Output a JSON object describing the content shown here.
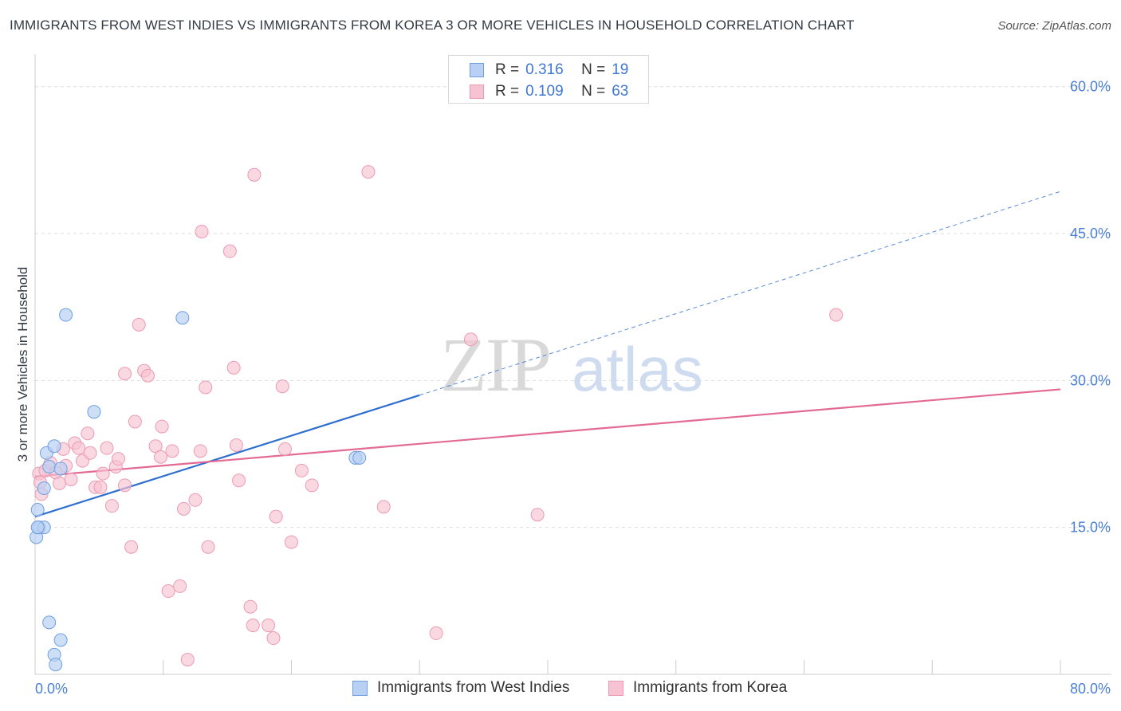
{
  "title": "IMMIGRANTS FROM WEST INDIES VS IMMIGRANTS FROM KOREA 3 OR MORE VEHICLES IN HOUSEHOLD CORRELATION CHART",
  "source": "Source: ZipAtlas.com",
  "watermark": {
    "zip": "ZIP",
    "atlas": "atlas"
  },
  "legend": {
    "rows": [
      {
        "r_label": "R =",
        "r_value": "0.316",
        "n_label": "N =",
        "n_value": "19"
      },
      {
        "r_label": "R =",
        "r_value": "0.109",
        "n_label": "N =",
        "n_value": "63"
      }
    ]
  },
  "bottom_legend": {
    "items": [
      "Immigrants from West Indies",
      "Immigrants from Korea"
    ]
  },
  "colors": {
    "blue_fill": "#b8d0f3",
    "blue_stroke": "#6f9fe0",
    "blue_line": "#2f6fd0",
    "pink_fill": "#f7c3d3",
    "pink_stroke": "#ec9ab4",
    "pink_line": "#e46a96",
    "grid": "#dddddd",
    "axis_text": "#4a7fd4"
  },
  "chart_data": {
    "type": "scatter",
    "title": "IMMIGRANTS FROM WEST INDIES VS IMMIGRANTS FROM KOREA 3 OR MORE VEHICLES IN HOUSEHOLD CORRELATION CHART",
    "xlabel": "",
    "ylabel": "3 or more Vehicles in Household",
    "xlim": [
      0,
      80
    ],
    "ylim": [
      0,
      62.5
    ],
    "x_tick_labels": [
      {
        "value": 0,
        "label": "0.0%"
      },
      {
        "value": 80,
        "label": "80.0%"
      }
    ],
    "y_tick_labels": [
      {
        "value": 15,
        "label": "15.0%"
      },
      {
        "value": 30,
        "label": "30.0%"
      },
      {
        "value": 45,
        "label": "45.0%"
      },
      {
        "value": 60,
        "label": "60.0%"
      }
    ],
    "y_gridlines": [
      15,
      30,
      45,
      60
    ],
    "series": [
      {
        "name": "Immigrants from West Indies",
        "color": "blue",
        "R": 0.316,
        "N": 19,
        "points": [
          [
            0.2,
            16.8
          ],
          [
            0.1,
            14.0
          ],
          [
            0.3,
            15.0
          ],
          [
            0.7,
            15.0
          ],
          [
            0.7,
            19.0
          ],
          [
            0.9,
            22.6
          ],
          [
            1.1,
            21.2
          ],
          [
            1.5,
            23.3
          ],
          [
            2.0,
            21.0
          ],
          [
            2.4,
            36.7
          ],
          [
            4.6,
            26.8
          ],
          [
            11.5,
            36.4
          ],
          [
            25.0,
            22.1
          ],
          [
            25.3,
            22.1
          ],
          [
            1.1,
            5.3
          ],
          [
            2.0,
            3.5
          ],
          [
            1.5,
            2.0
          ],
          [
            1.6,
            1.0
          ],
          [
            0.2,
            15.0
          ]
        ],
        "trend": {
          "x0": 0,
          "y0": 16.1,
          "x1": 30,
          "y1": 28.5,
          "dash_to_x": 80,
          "dash_to_y": 49.3
        }
      },
      {
        "name": "Immigrants from Korea",
        "color": "pink",
        "R": 0.109,
        "N": 63,
        "points": [
          [
            0.3,
            20.5
          ],
          [
            0.4,
            19.6
          ],
          [
            0.5,
            18.4
          ],
          [
            0.8,
            20.8
          ],
          [
            1.2,
            21.6
          ],
          [
            1.6,
            20.6
          ],
          [
            1.9,
            19.5
          ],
          [
            2.2,
            23.0
          ],
          [
            2.4,
            21.3
          ],
          [
            2.8,
            19.9
          ],
          [
            3.1,
            23.6
          ],
          [
            3.4,
            23.1
          ],
          [
            3.7,
            21.8
          ],
          [
            4.1,
            24.6
          ],
          [
            4.3,
            22.6
          ],
          [
            4.7,
            19.1
          ],
          [
            5.1,
            19.1
          ],
          [
            5.3,
            20.5
          ],
          [
            5.6,
            23.1
          ],
          [
            6.0,
            17.2
          ],
          [
            6.3,
            21.2
          ],
          [
            6.5,
            22.0
          ],
          [
            7.0,
            19.3
          ],
          [
            7.5,
            13.0
          ],
          [
            7.8,
            25.8
          ],
          [
            8.1,
            35.7
          ],
          [
            8.5,
            31.0
          ],
          [
            8.8,
            30.5
          ],
          [
            7.0,
            30.7
          ],
          [
            9.4,
            23.3
          ],
          [
            9.8,
            22.2
          ],
          [
            9.9,
            25.3
          ],
          [
            10.4,
            8.5
          ],
          [
            10.7,
            22.8
          ],
          [
            11.3,
            9.0
          ],
          [
            11.6,
            16.9
          ],
          [
            12.5,
            17.8
          ],
          [
            12.9,
            22.8
          ],
          [
            13.3,
            29.3
          ],
          [
            13.5,
            13.0
          ],
          [
            11.9,
            1.5
          ],
          [
            13.0,
            45.2
          ],
          [
            15.2,
            43.2
          ],
          [
            15.5,
            31.3
          ],
          [
            15.7,
            23.4
          ],
          [
            15.9,
            19.8
          ],
          [
            16.8,
            6.9
          ],
          [
            17.0,
            5.0
          ],
          [
            17.1,
            51.0
          ],
          [
            18.2,
            5.0
          ],
          [
            18.6,
            3.7
          ],
          [
            18.8,
            16.1
          ],
          [
            19.3,
            29.4
          ],
          [
            19.5,
            23.0
          ],
          [
            20.0,
            13.5
          ],
          [
            20.8,
            20.8
          ],
          [
            21.6,
            19.3
          ],
          [
            26.0,
            51.3
          ],
          [
            27.2,
            17.1
          ],
          [
            34.0,
            34.2
          ],
          [
            31.3,
            4.2
          ],
          [
            39.2,
            16.3
          ],
          [
            62.5,
            36.7
          ]
        ],
        "trend": {
          "x0": 0,
          "y0": 20.2,
          "x1": 80,
          "y1": 29.1
        }
      }
    ]
  }
}
